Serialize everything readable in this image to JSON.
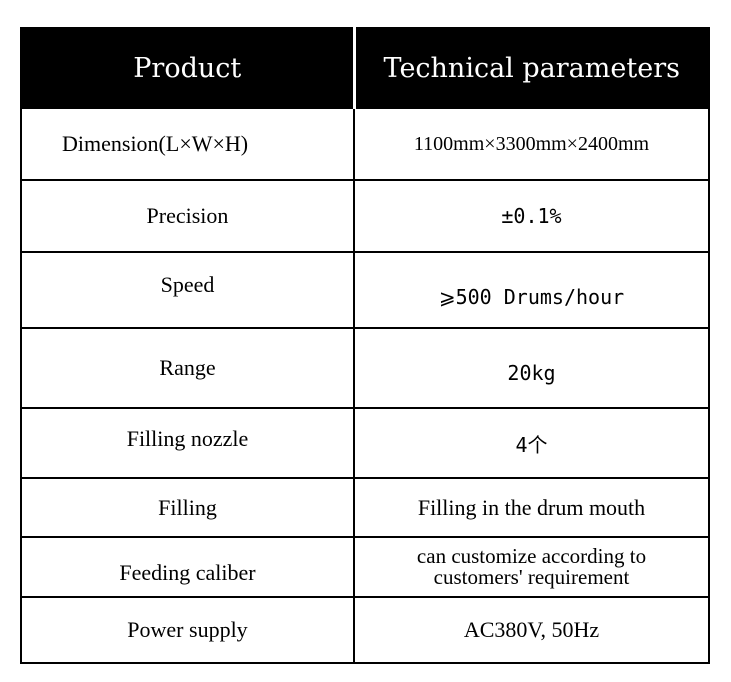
{
  "header": {
    "product": "Product",
    "parameters": "Technical  parameters"
  },
  "rows": [
    {
      "label": "Dimension(L×W×H)",
      "value": "1100mm×3300mm×2400mm"
    },
    {
      "label": "Precision",
      "value": "±0.1%"
    },
    {
      "label": "Speed",
      "value": "⩾500 Drums/hour"
    },
    {
      "label": "Range",
      "value": "20kg"
    },
    {
      "label": "Filling nozzle",
      "value": "4个"
    },
    {
      "label": "Filling",
      "value": "Filling in the drum mouth"
    },
    {
      "label": "Feeding caliber",
      "value_line1": "can customize according to",
      "value_line2": "customers' requirement"
    },
    {
      "label": "Power supply",
      "value": "AC380V, 50Hz"
    }
  ]
}
